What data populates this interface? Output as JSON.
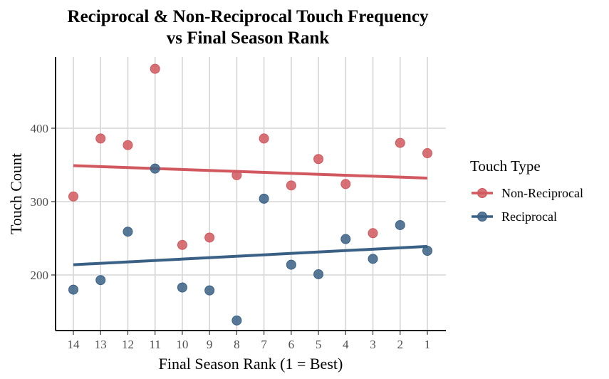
{
  "chart_data": {
    "type": "scatter",
    "title": "Reciprocal & Non-Reciprocal Touch Frequency",
    "subtitle": "vs Final Season Rank",
    "xlabel": "Final Season Rank (1 = Best)",
    "ylabel": "Touch Count",
    "categories": [
      "14",
      "13",
      "12",
      "11",
      "10",
      "9",
      "8",
      "7",
      "6",
      "5",
      "4",
      "3",
      "2",
      "1"
    ],
    "ylim": [
      130,
      500
    ],
    "yticks": [
      200,
      300,
      400
    ],
    "grid": true,
    "legend": {
      "title": "Touch Type",
      "position": "right"
    },
    "series": [
      {
        "name": "Non-Reciprocal",
        "color": "#d1585e",
        "values": [
          307,
          386,
          377,
          481,
          241,
          251,
          336,
          386,
          322,
          358,
          324,
          257,
          380,
          366
        ],
        "trend": [
          349,
          332
        ]
      },
      {
        "name": "Reciprocal",
        "color": "#3a6185",
        "values": [
          180,
          193,
          259,
          345,
          183,
          179,
          138,
          304,
          214,
          201,
          249,
          222,
          268,
          233
        ],
        "trend": [
          214,
          239
        ]
      }
    ]
  }
}
